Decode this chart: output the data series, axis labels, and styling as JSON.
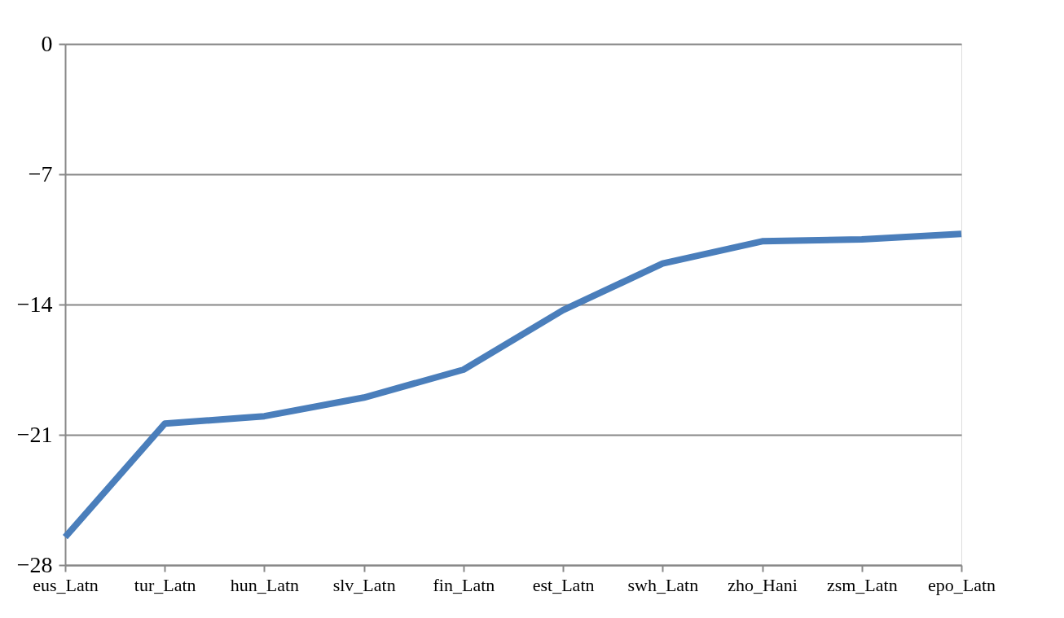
{
  "chart_data": {
    "type": "line",
    "categories": [
      "eus_Latn",
      "tur_Latn",
      "hun_Latn",
      "slv_Latn",
      "fin_Latn",
      "est_Latn",
      "swh_Latn",
      "zho_Hani",
      "zsm_Latn",
      "epo_Latn"
    ],
    "series": [
      {
        "color": "#4a7ebb",
        "values": [
          -26.5,
          -20.4,
          -20.0,
          -19.0,
          -17.5,
          -14.3,
          -11.8,
          -10.6,
          -10.5,
          -10.2
        ]
      }
    ],
    "ylim": [
      -28,
      0
    ],
    "yticks": [
      -28,
      -21,
      -14,
      -7,
      0
    ],
    "grid": "y",
    "marker": "none",
    "line_style": "solid"
  }
}
